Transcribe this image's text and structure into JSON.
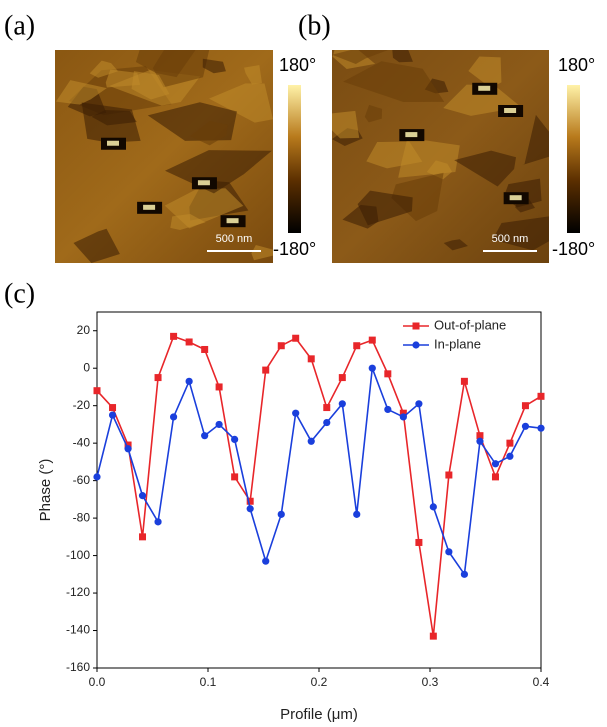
{
  "panel_labels": [
    "(a)",
    "(b)",
    "(c)"
  ],
  "images": [
    {
      "colorbar_max": "180°",
      "colorbar_min": "-180°",
      "scale_bar": "500 nm"
    },
    {
      "colorbar_max": "180°",
      "colorbar_min": "-180°",
      "scale_bar": "500 nm"
    }
  ],
  "chart_data": {
    "type": "line",
    "x_label": "Profile (μm)",
    "y_label": "Phase (°)",
    "x": [
      0,
      0.014,
      0.028,
      0.041,
      0.055,
      0.069,
      0.083,
      0.097,
      0.11,
      0.124,
      0.138,
      0.152,
      0.166,
      0.179,
      0.193,
      0.207,
      0.221,
      0.234,
      0.248,
      0.262,
      0.276,
      0.29,
      0.303,
      0.317,
      0.331,
      0.345,
      0.359,
      0.372,
      0.386,
      0.4
    ],
    "series": [
      {
        "name": "Out-of-plane",
        "color": "#e8262a",
        "marker": "square",
        "values": [
          -12,
          -21,
          -41,
          -90,
          -5,
          17,
          14,
          10,
          -10,
          -58,
          -71,
          -1,
          12,
          16,
          5,
          -21,
          -5,
          12,
          15,
          -3,
          -24,
          -93,
          -143,
          -57,
          -7,
          -36,
          -58,
          -40,
          -20,
          -15
        ]
      },
      {
        "name": "In-plane",
        "color": "#1a3fdc",
        "marker": "circle",
        "values": [
          -58,
          -25,
          -43,
          -68,
          -82,
          -26,
          -7,
          -36,
          -30,
          -38,
          -75,
          -103,
          -78,
          -24,
          -39,
          -29,
          -19,
          -78,
          0,
          -22,
          -26,
          -19,
          -74,
          -98,
          -110,
          -39,
          -51,
          -47,
          -31,
          -32
        ]
      }
    ],
    "xlim": [
      0,
      0.4
    ],
    "xticks": [
      {
        "value": 0,
        "label": "0.0"
      },
      0.1,
      0.2,
      0.3,
      0.4
    ],
    "ylim": [
      -160,
      30
    ],
    "yticks": [
      -160,
      -140,
      -120,
      -100,
      -80,
      -60,
      -40,
      -20,
      0,
      20
    ],
    "legend": "upper right"
  }
}
